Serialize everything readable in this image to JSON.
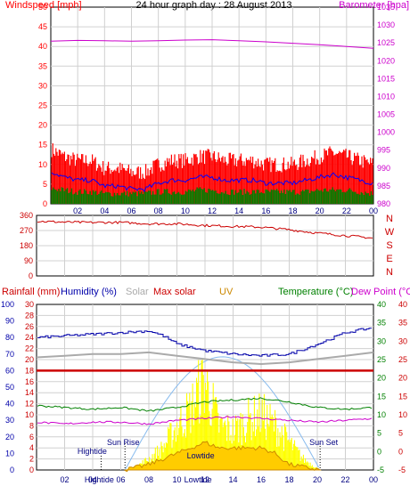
{
  "title": "24 hour graph day : 28 August 2013",
  "colors": {
    "wind": "#ff0000",
    "gust": "#0000ff",
    "avg": "#008000",
    "baro": "#cc00cc",
    "dir": "#cc0000",
    "navy": "#000080",
    "humidity": "#0000aa",
    "solarx": "#aaaaaa",
    "maxsolar": "#cc0000",
    "uv": "#cc8800",
    "temp": "#008000",
    "dew": "#cc00cc",
    "solar": "#ffff00"
  },
  "chart_data": [
    {
      "type": "line",
      "ylabel_left": "Windspeed [mph]",
      "ylabel_right": "Barometer [hpa]",
      "x_ticks": [
        "02",
        "04",
        "06",
        "08",
        "10",
        "12",
        "14",
        "16",
        "18",
        "20",
        "22",
        "00"
      ],
      "y_left": {
        "min": 0,
        "max": 50,
        "ticks": [
          "0",
          "5",
          "10",
          "15",
          "20",
          "25",
          "30",
          "35",
          "40",
          "45",
          "50"
        ]
      },
      "y_right": {
        "min": 980,
        "max": 1035,
        "ticks": [
          "980",
          "985",
          "990",
          "995",
          "1000",
          "1005",
          "1010",
          "1015",
          "1020",
          "1025",
          "1030",
          "1035"
        ]
      },
      "series": [
        {
          "key": "gust",
          "axis": "left",
          "x": [
            0,
            1,
            2,
            3,
            4,
            5,
            6,
            7,
            8,
            9,
            10,
            11,
            12,
            13,
            14,
            15,
            16,
            17,
            18,
            19,
            20,
            21,
            22,
            23,
            24
          ],
          "values": [
            11,
            9,
            8,
            8,
            6,
            6,
            5,
            5,
            7,
            8,
            8,
            9,
            9,
            8,
            8,
            8,
            7,
            7,
            7,
            8,
            9,
            10,
            9,
            8,
            7
          ]
        },
        {
          "key": "avg",
          "axis": "left",
          "x": [
            0,
            1,
            2,
            3,
            4,
            5,
            6,
            7,
            8,
            9,
            10,
            11,
            12,
            13,
            14,
            15,
            16,
            17,
            18,
            19,
            20,
            21,
            22,
            23,
            24
          ],
          "values": [
            7,
            6,
            5,
            5,
            4,
            4,
            4,
            4,
            5,
            5,
            5,
            6,
            6,
            5,
            5,
            5,
            5,
            5,
            5,
            5,
            6,
            6,
            6,
            5,
            4
          ]
        },
        {
          "key": "baro",
          "axis": "right",
          "x": [
            0,
            2,
            4,
            6,
            8,
            10,
            12,
            14,
            16,
            18,
            20,
            22,
            24
          ],
          "values": [
            1025.5,
            1025.7,
            1025.6,
            1025.5,
            1025.6,
            1025.8,
            1025.9,
            1025.6,
            1025.3,
            1024.9,
            1024.5,
            1024,
            1023.5
          ]
        }
      ]
    },
    {
      "type": "scatter",
      "labels_right": [
        "N",
        "W",
        "S",
        "E",
        "N"
      ],
      "y": {
        "min": 0,
        "max": 360,
        "ticks": [
          "0",
          "90",
          "180",
          "270",
          "360"
        ]
      },
      "series": [
        {
          "key": "dir",
          "x": [
            0,
            2,
            4,
            6,
            8,
            10,
            12,
            14,
            16,
            18,
            20,
            22,
            24
          ],
          "values": [
            325,
            320,
            318,
            318,
            310,
            310,
            300,
            295,
            290,
            275,
            255,
            240,
            225
          ]
        }
      ]
    },
    {
      "type": "line",
      "legend": [
        "Rainfall (mm)",
        "Humidity (%)",
        "Solar",
        "Max solar",
        "UV",
        "Temperature (°C)",
        "Dew Point (°C)"
      ],
      "y_rain": {
        "min": 0,
        "max": 30,
        "ticks": [
          "0",
          "2",
          "4",
          "6",
          "8",
          "10",
          "12",
          "14",
          "16",
          "18",
          "20",
          "22",
          "24",
          "26",
          "28",
          "30"
        ]
      },
      "y_humidity": {
        "min": 0,
        "max": 100,
        "ticks": [
          "0",
          "10",
          "20",
          "30",
          "40",
          "50",
          "60",
          "70",
          "80",
          "90",
          "100"
        ]
      },
      "y_temp": {
        "min": -5,
        "max": 40,
        "ticks": [
          "-5",
          "0",
          "5",
          "10",
          "15",
          "20",
          "25",
          "30",
          "35",
          "40"
        ]
      },
      "series": [
        {
          "key": "humidity",
          "axis": "humidity",
          "x": [
            0,
            2,
            4,
            6,
            8,
            9,
            10,
            12,
            14,
            16,
            18,
            20,
            22,
            24
          ],
          "values": [
            80,
            81,
            82,
            83,
            84,
            81,
            76,
            72,
            70,
            69,
            70,
            76,
            83,
            86
          ]
        },
        {
          "key": "solarx",
          "axis": "humidity",
          "x": [
            0,
            2,
            4,
            6,
            8,
            10,
            12,
            14,
            16,
            18,
            20,
            22,
            24
          ],
          "values": [
            68,
            69,
            70,
            70,
            71,
            69,
            67,
            65,
            64,
            65,
            67,
            69,
            71
          ]
        },
        {
          "key": "maxsolar",
          "axis": "rain",
          "x": [
            0,
            24
          ],
          "values": [
            18,
            18
          ]
        },
        {
          "key": "temp",
          "axis": "temp",
          "x": [
            0,
            2,
            4,
            6,
            8,
            10,
            12,
            14,
            16,
            18,
            20,
            22,
            24
          ],
          "values": [
            12.5,
            12,
            11.5,
            12,
            11,
            12,
            13.5,
            14,
            14.5,
            13.5,
            12,
            11.5,
            12
          ]
        },
        {
          "key": "dew",
          "axis": "temp",
          "x": [
            0,
            2,
            4,
            6,
            8,
            10,
            12,
            14,
            16,
            18,
            20,
            22,
            24
          ],
          "values": [
            8,
            7.5,
            8,
            8,
            7.5,
            8.5,
            9,
            9.5,
            9,
            8.5,
            8,
            8.5,
            9
          ]
        },
        {
          "key": "solar",
          "axis": "rain",
          "x": [
            6.3,
            7,
            8,
            9,
            10,
            11,
            11.5,
            12,
            12.5,
            13,
            14,
            15,
            16,
            17,
            18,
            19,
            20.2
          ],
          "values": [
            0,
            0.5,
            2,
            4,
            8,
            11,
            14,
            16,
            12,
            8,
            7,
            9,
            10,
            8,
            5,
            2,
            0
          ]
        },
        {
          "key": "uv",
          "axis": "rain",
          "x": [
            6.3,
            8,
            9,
            10,
            11,
            12,
            13,
            14,
            15,
            16,
            17,
            18,
            20.2
          ],
          "values": [
            0,
            1,
            2,
            3,
            4,
            5,
            4,
            4,
            4,
            4,
            3,
            1,
            0
          ]
        }
      ],
      "annotations": [
        {
          "text": "Sun Rise",
          "x": 6.3
        },
        {
          "text": "Sun Set",
          "x": 20.2
        },
        {
          "text": "Hightide",
          "x": 4.6
        },
        {
          "text": "Lowtide",
          "x": 11.5
        },
        {
          "text": "Hightide",
          "x": 4.6,
          "bottom": true
        },
        {
          "text": "Lowtide",
          "x": 11.5,
          "bottom": true
        }
      ]
    }
  ]
}
